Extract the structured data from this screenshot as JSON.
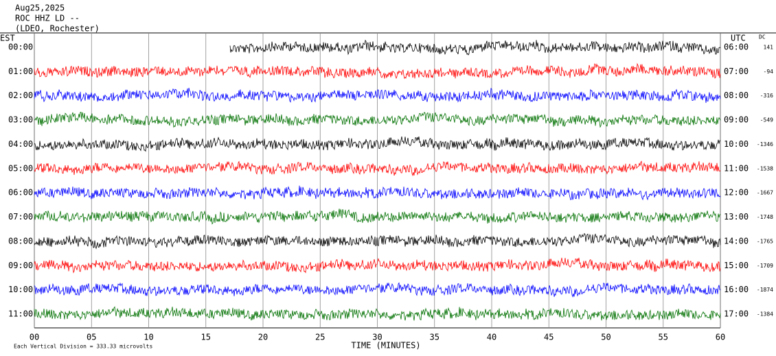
{
  "chart_data": {
    "type": "helicorder",
    "title_lines": [
      "Aug25,2025",
      "ROC HHZ LD --",
      "(LDEO, Rochester)"
    ],
    "left_header": "EST",
    "right_header": "UTC",
    "dc_header": "DC",
    "xlabel": "TIME (MINUTES)",
    "footnote": "Each Vertical Division = 333.33 microvolts",
    "xlim": [
      0,
      60
    ],
    "xticks": [
      {
        "value": 0,
        "label": "00"
      },
      {
        "value": 5,
        "label": "05"
      },
      10,
      15,
      20,
      25,
      30,
      35,
      40,
      45,
      50,
      55,
      60
    ],
    "rows": [
      {
        "est": "00:00",
        "utc": "06:00",
        "dc": 141,
        "color": "#000000"
      },
      {
        "est": "01:00",
        "utc": "07:00",
        "dc": -94,
        "color": "#ff0000"
      },
      {
        "est": "02:00",
        "utc": "08:00",
        "dc": -316,
        "color": "#0000ff"
      },
      {
        "est": "03:00",
        "utc": "09:00",
        "dc": -549,
        "color": "#007000"
      },
      {
        "est": "04:00",
        "utc": "10:00",
        "dc": -1346,
        "color": "#000000"
      },
      {
        "est": "05:00",
        "utc": "11:00",
        "dc": -1538,
        "color": "#ff0000"
      },
      {
        "est": "06:00",
        "utc": "12:00",
        "dc": -1667,
        "color": "#0000ff"
      },
      {
        "est": "07:00",
        "utc": "13:00",
        "dc": -1748,
        "color": "#007000"
      },
      {
        "est": "08:00",
        "utc": "14:00",
        "dc": -1765,
        "color": "#000000"
      },
      {
        "est": "09:00",
        "utc": "15:00",
        "dc": -1709,
        "color": "#ff0000"
      },
      {
        "est": "10:00",
        "utc": "16:00",
        "dc": -1874,
        "color": "#0000ff"
      },
      {
        "est": "11:00",
        "utc": "17:00",
        "dc": -1384,
        "color": "#007000"
      }
    ]
  }
}
